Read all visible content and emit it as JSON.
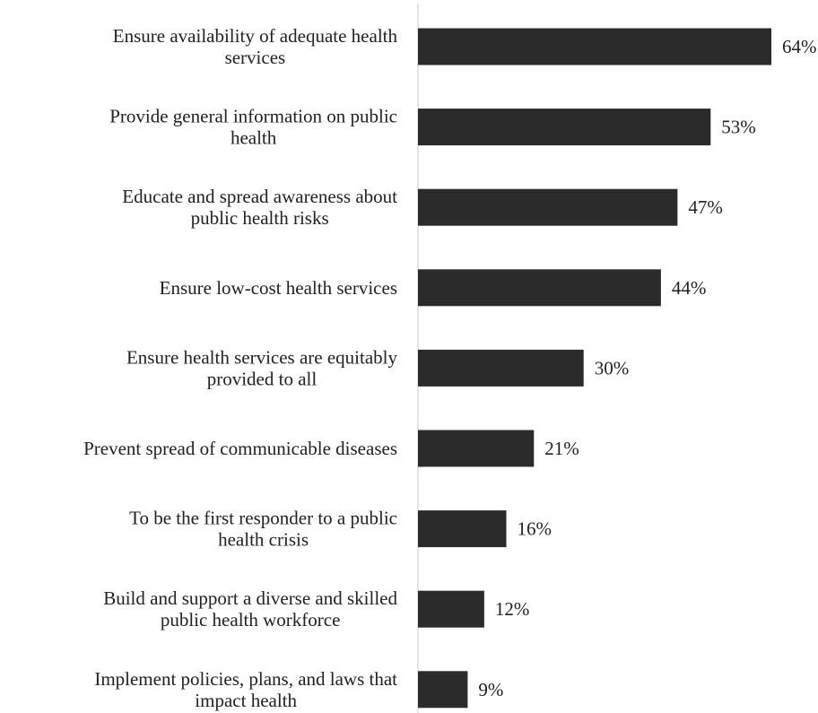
{
  "chart_data": {
    "type": "bar",
    "orientation": "horizontal",
    "title": "",
    "xlabel": "",
    "ylabel": "",
    "categories": [
      [
        "Ensure availability of adequate health",
        "services"
      ],
      [
        "Provide general information on public",
        "health"
      ],
      [
        "Educate and spread awareness about",
        "public health risks"
      ],
      [
        "Ensure low-cost health services"
      ],
      [
        "Ensure health services are equitably",
        "provided to all"
      ],
      [
        "Prevent spread of communicable diseases"
      ],
      [
        "To be the first responder to a public",
        "health crisis"
      ],
      [
        "Build and support a diverse and skilled",
        "public health workforce"
      ],
      [
        "Implement policies,  plans,  and laws that",
        "impact health"
      ]
    ],
    "values": [
      64,
      53,
      47,
      44,
      30,
      21,
      16,
      12,
      9
    ],
    "value_labels": [
      "64%",
      "53%",
      "47%",
      "44%",
      "30%",
      "21%",
      "16%",
      "12%",
      "9%"
    ],
    "xlim": [
      0,
      64
    ],
    "grid": false,
    "legend": "none",
    "bar_color": "#2b2b2b",
    "axis_color": "#c8c8c8"
  }
}
